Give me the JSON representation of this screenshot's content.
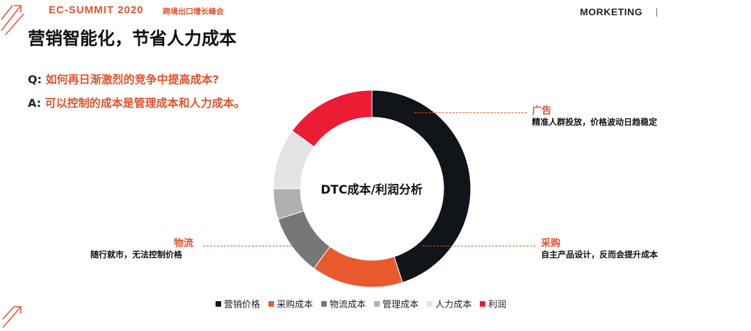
{
  "header": {
    "event_title": "EC-SUMMIT 2020",
    "event_subtitle": "跨境出口增长峰会",
    "brand": "MORKETING"
  },
  "slide": {
    "title": "营销智能化，节省人力成本",
    "q_prefix": "Q:",
    "question": "如何再日渐激烈的竞争中提高成本?",
    "a_prefix": "A:",
    "answer": "可以控制的成本是管理成本和人力成本。"
  },
  "annotations": [
    {
      "title": "广告",
      "description": "精准人群投放，价格波动日趋稳定"
    },
    {
      "title": "采购",
      "description": "自主产品设计，反而会提升成本"
    },
    {
      "title": "物流",
      "description": "随行就市，无法控制价格"
    }
  ],
  "colors": {
    "accent": "#e8502a",
    "marketing": "#111418",
    "purchase": "#e85a2d",
    "logistics": "#777777",
    "management": "#b0b0b0",
    "labor": "#e4e4e4",
    "profit": "#ec1c35"
  },
  "chart_data": {
    "type": "pie",
    "variant": "donut",
    "title": "DTC成本/利润分析",
    "categories": [
      "营销价格",
      "采购成本",
      "物流成本",
      "管理成本",
      "人力成本",
      "利润"
    ],
    "values": [
      45,
      15,
      10,
      5,
      10,
      15
    ],
    "colors": [
      "#111418",
      "#e85a2d",
      "#777777",
      "#b0b0b0",
      "#e4e4e4",
      "#ec1c35"
    ],
    "legend_position": "bottom"
  }
}
